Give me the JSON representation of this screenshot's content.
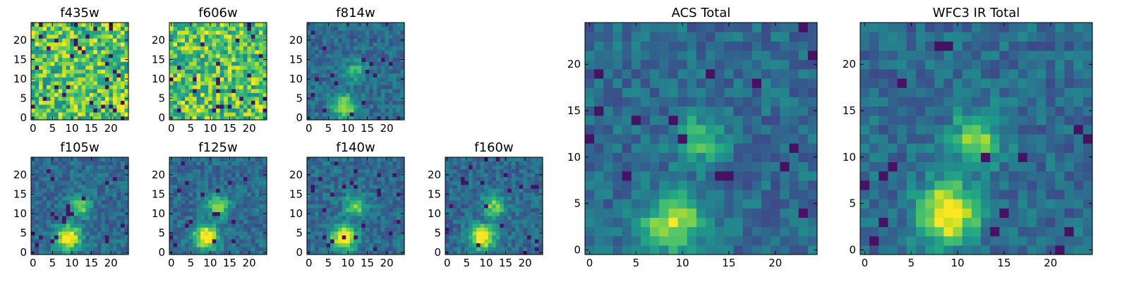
{
  "chart_data": [
    {
      "type": "heatmap",
      "title": "f435w",
      "size": 25,
      "xticks": [
        0,
        5,
        10,
        15,
        20
      ],
      "yticks": [
        0,
        5,
        10,
        15,
        20
      ],
      "xlim": [
        -0.5,
        24.5
      ],
      "ylim": [
        -0.5,
        24.5
      ],
      "colormap": "viridis",
      "signal": "noise"
    },
    {
      "type": "heatmap",
      "title": "f606w",
      "size": 25,
      "xticks": [
        0,
        5,
        10,
        15,
        20
      ],
      "yticks": [
        0,
        5,
        10,
        15,
        20
      ],
      "xlim": [
        -0.5,
        24.5
      ],
      "ylim": [
        -0.5,
        24.5
      ],
      "colormap": "viridis",
      "signal": "noise"
    },
    {
      "type": "heatmap",
      "title": "f814w",
      "size": 25,
      "xticks": [
        0,
        5,
        10,
        15,
        20
      ],
      "yticks": [
        0,
        5,
        10,
        15,
        20
      ],
      "xlim": [
        -0.5,
        24.5
      ],
      "ylim": [
        -0.5,
        24.5
      ],
      "colormap": "viridis",
      "signal": "faint-source",
      "peak_pixel": [
        9,
        3
      ]
    },
    {
      "type": "heatmap",
      "title": "f105w",
      "size": 25,
      "xticks": [
        0,
        5,
        10,
        15,
        20
      ],
      "yticks": [
        0,
        5,
        10,
        15,
        20
      ],
      "xlim": [
        -0.5,
        24.5
      ],
      "ylim": [
        -0.5,
        24.5
      ],
      "colormap": "viridis",
      "signal": "source",
      "peak_pixel": [
        9,
        4
      ]
    },
    {
      "type": "heatmap",
      "title": "f125w",
      "size": 25,
      "xticks": [
        0,
        5,
        10,
        15,
        20
      ],
      "yticks": [
        0,
        5,
        10,
        15,
        20
      ],
      "xlim": [
        -0.5,
        24.5
      ],
      "ylim": [
        -0.5,
        24.5
      ],
      "colormap": "viridis",
      "signal": "source",
      "peak_pixel": [
        9,
        4
      ]
    },
    {
      "type": "heatmap",
      "title": "f140w",
      "size": 25,
      "xticks": [
        0,
        5,
        10,
        15,
        20
      ],
      "yticks": [
        0,
        5,
        10,
        15,
        20
      ],
      "xlim": [
        -0.5,
        24.5
      ],
      "ylim": [
        -0.5,
        24.5
      ],
      "colormap": "viridis",
      "signal": "source",
      "peak_pixel": [
        9,
        4
      ]
    },
    {
      "type": "heatmap",
      "title": "f160w",
      "size": 25,
      "xticks": [
        0,
        5,
        10,
        15,
        20
      ],
      "yticks": [
        0,
        5,
        10,
        15,
        20
      ],
      "xlim": [
        -0.5,
        24.5
      ],
      "ylim": [
        -0.5,
        24.5
      ],
      "colormap": "viridis",
      "signal": "source",
      "peak_pixel": [
        9,
        4
      ]
    },
    {
      "type": "heatmap",
      "title": "ACS Total",
      "size": 25,
      "xticks": [
        0,
        5,
        10,
        15,
        20
      ],
      "yticks": [
        0,
        5,
        10,
        15,
        20
      ],
      "xlim": [
        -0.5,
        24.5
      ],
      "ylim": [
        -0.5,
        24.5
      ],
      "colormap": "viridis",
      "signal": "faint-source",
      "peak_pixel": [
        9,
        3
      ]
    },
    {
      "type": "heatmap",
      "title": "WFC3 IR Total",
      "size": 25,
      "xticks": [
        0,
        5,
        10,
        15,
        20
      ],
      "yticks": [
        0,
        5,
        10,
        15,
        20
      ],
      "xlim": [
        -0.5,
        24.5
      ],
      "ylim": [
        -0.5,
        24.5
      ],
      "colormap": "viridis",
      "signal": "source",
      "peak_pixel": [
        9,
        4
      ]
    }
  ]
}
